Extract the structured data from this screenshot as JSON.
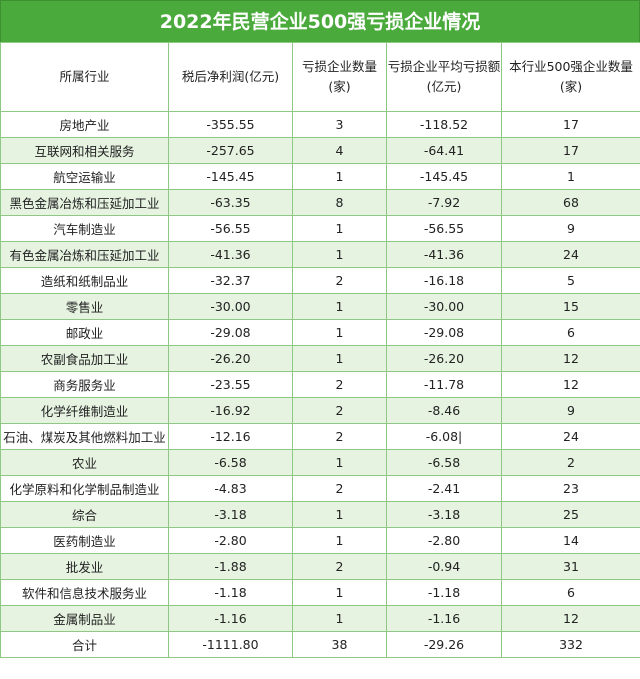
{
  "title": "2022年民营企业500强亏损企业情况",
  "headers": [
    "所属行业",
    "税后净利润(亿元)",
    "亏损企业数量(家)",
    "亏损企业平均亏损额(亿元)",
    "本行业500强企业数量(家)"
  ],
  "rows": [
    [
      "房地产业",
      "-355.55",
      "3",
      "-118.52",
      "17"
    ],
    [
      "互联网和相关服务",
      "-257.65",
      "4",
      "-64.41",
      "17"
    ],
    [
      "航空运输业",
      "-145.45",
      "1",
      "-145.45",
      "1"
    ],
    [
      "黑色金属冶炼和压延加工业",
      "-63.35",
      "8",
      "-7.92",
      "68"
    ],
    [
      "汽车制造业",
      "-56.55",
      "1",
      "-56.55",
      "9"
    ],
    [
      "有色金属冶炼和压延加工业",
      "-41.36",
      "1",
      "-41.36",
      "24"
    ],
    [
      "造纸和纸制品业",
      "-32.37",
      "2",
      "-16.18",
      "5"
    ],
    [
      "零售业",
      "-30.00",
      "1",
      "-30.00",
      "15"
    ],
    [
      "邮政业",
      "-29.08",
      "1",
      "-29.08",
      "6"
    ],
    [
      "农副食品加工业",
      "-26.20",
      "1",
      "-26.20",
      "12"
    ],
    [
      "商务服务业",
      "-23.55",
      "2",
      "-11.78",
      "12"
    ],
    [
      "化学纤维制造业",
      "-16.92",
      "2",
      "-8.46",
      "9"
    ],
    [
      "石油、煤炭及其他燃料加工业",
      "-12.16",
      "2",
      "-6.08|",
      "24"
    ],
    [
      "农业",
      "-6.58",
      "1",
      "-6.58",
      "2"
    ],
    [
      "化学原料和化学制品制造业",
      "-4.83",
      "2",
      "-2.41",
      "23"
    ],
    [
      "综合",
      "-3.18",
      "1",
      "-3.18",
      "25"
    ],
    [
      "医药制造业",
      "-2.80",
      "1",
      "-2.80",
      "14"
    ],
    [
      "批发业",
      "-1.88",
      "2",
      "-0.94",
      "31"
    ],
    [
      "软件和信息技术服务业",
      "-1.18",
      "1",
      "-1.18",
      "6"
    ],
    [
      "金属制品业",
      "-1.16",
      "1",
      "-1.16",
      "12"
    ]
  ],
  "total": [
    "合计",
    "-1111.80",
    "38",
    "-29.26",
    "332"
  ]
}
